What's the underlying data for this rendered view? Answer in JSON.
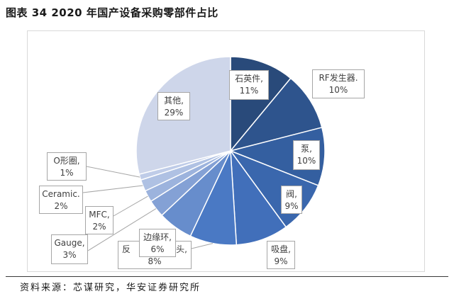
{
  "figure": {
    "caption": "图表 34 2020 年国产设备采购零部件占比",
    "source": "资料来源：芯谋研究，华安证券研究所"
  },
  "chart_data": {
    "type": "pie",
    "legend": "none",
    "slices": [
      {
        "label": "石英件,",
        "value": 11,
        "value_label": "11%",
        "color": "#294a7a"
      },
      {
        "label": "RF发生器.",
        "value": 10,
        "value_label": "10%",
        "color": "#2e548d"
      },
      {
        "label": "泵,",
        "value": 10,
        "value_label": "10%",
        "color": "#345fa0"
      },
      {
        "label": "阀,",
        "value": 9,
        "value_label": "9%",
        "color": "#3a67ad"
      },
      {
        "label": "吸盘,",
        "value": 9,
        "value_label": "9%",
        "color": "#416fba"
      },
      {
        "label_parts": [
          "反",
          "头,"
        ],
        "value": 8,
        "value_label": "8%",
        "color": "#4a79c4"
      },
      {
        "label": "边缘环,",
        "value": 6,
        "value_label": "6%",
        "color": "#678dcc"
      },
      {
        "label": "Gauge,",
        "value": 3,
        "value_label": "3%",
        "color": "#84a1d5"
      },
      {
        "label": "MFC,",
        "value": 2,
        "value_label": "2%",
        "color": "#9cb3dd"
      },
      {
        "label": "Ceramic.",
        "value": 2,
        "value_label": "2%",
        "color": "#afc1e3"
      },
      {
        "label": "O形圈,",
        "value": 1,
        "value_label": "1%",
        "color": "#bfcce8"
      },
      {
        "label": "其他,",
        "value": 29,
        "value_label": "29%",
        "color": "#ced6ea"
      }
    ]
  }
}
